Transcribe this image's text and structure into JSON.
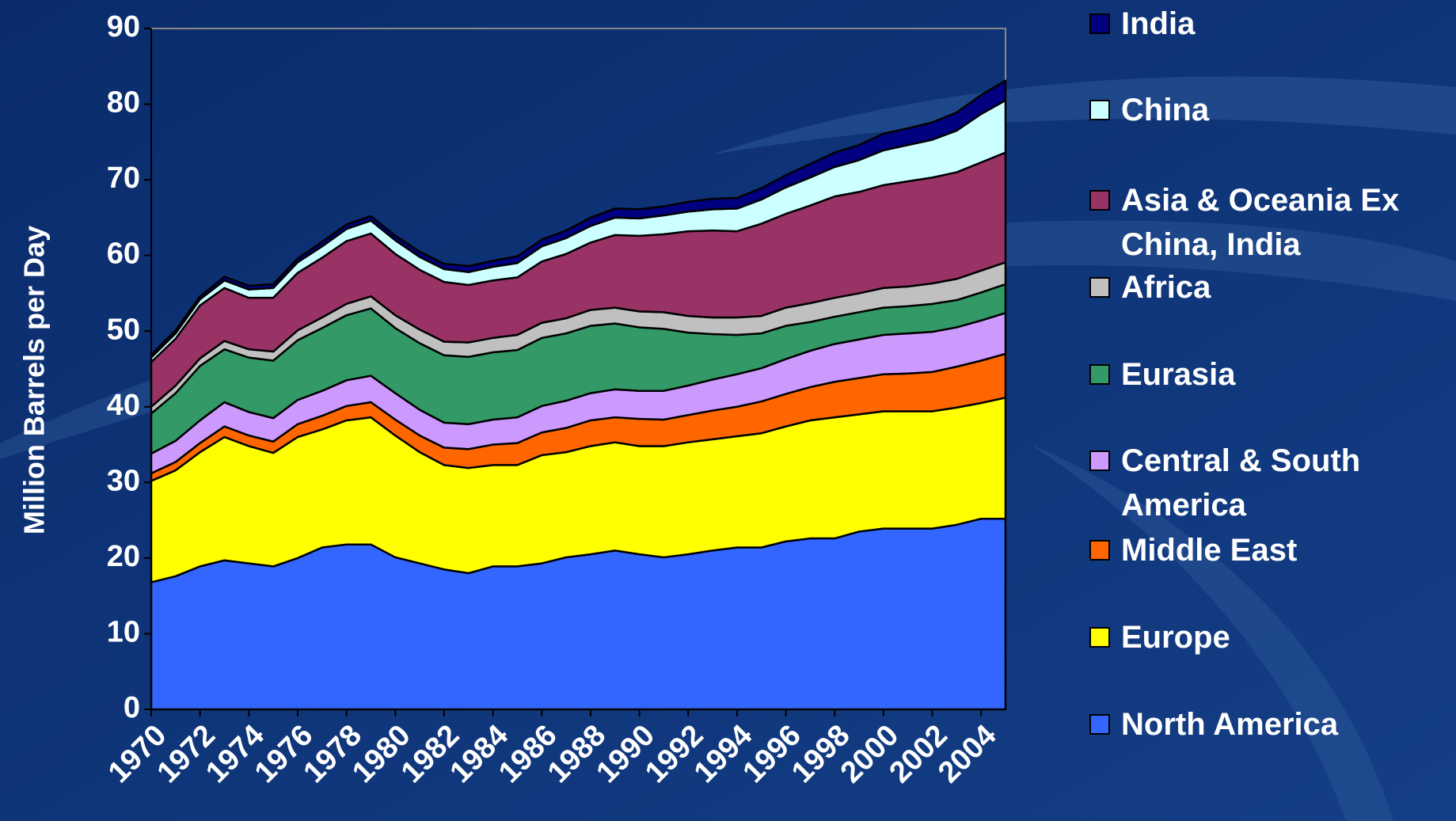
{
  "chart_data": {
    "type": "stacked_area",
    "y_label": "Million Barrels per Day",
    "x": [
      1970,
      1971,
      1972,
      1973,
      1974,
      1975,
      1976,
      1977,
      1978,
      1979,
      1980,
      1981,
      1982,
      1983,
      1984,
      1985,
      1986,
      1987,
      1988,
      1989,
      1990,
      1991,
      1992,
      1993,
      1994,
      1995,
      1996,
      1997,
      1998,
      1999,
      2000,
      2001,
      2002,
      2003,
      2004,
      2005
    ],
    "xlim": [
      1970,
      2005
    ],
    "xticks": [
      1970,
      1972,
      1974,
      1976,
      1978,
      1980,
      1982,
      1984,
      1986,
      1988,
      1990,
      1992,
      1994,
      1996,
      1998,
      2000,
      2002,
      2004
    ],
    "ylim": [
      0,
      90
    ],
    "yticks": [
      0,
      10,
      20,
      30,
      40,
      50,
      60,
      70,
      80,
      90
    ],
    "series": [
      {
        "name": "North America",
        "color": "#3366ff",
        "values": [
          16.8,
          17.6,
          18.9,
          19.7,
          19.3,
          18.9,
          20.0,
          21.4,
          21.8,
          21.8,
          20.1,
          19.3,
          18.5,
          18.0,
          18.9,
          18.9,
          19.3,
          20.1,
          20.5,
          21.0,
          20.5,
          20.1,
          20.5,
          21.0,
          21.4,
          21.4,
          22.2,
          22.6,
          22.6,
          23.5,
          23.9,
          23.9,
          23.9,
          24.4,
          25.2,
          25.2
        ]
      },
      {
        "name": "Europe",
        "color": "#ffff00",
        "values": [
          13.4,
          14,
          15.1,
          16.3,
          15.5,
          15,
          16,
          15.6,
          16.4,
          16.8,
          16.1,
          14.7,
          13.8,
          13.9,
          13.4,
          13.4,
          14.3,
          13.9,
          14.3,
          14.3,
          14.3,
          14.7,
          14.8,
          14.7,
          14.7,
          15.1,
          15.2,
          15.6,
          16,
          15.5,
          15.5,
          15.5,
          15.5,
          15.5,
          15.3,
          16
        ]
      },
      {
        "name": "Middle East",
        "color": "#ff6600",
        "values": [
          1.0,
          1.1,
          1.2,
          1.4,
          1.4,
          1.5,
          1.7,
          1.8,
          1.9,
          2.0,
          2.1,
          2.2,
          2.3,
          2.5,
          2.7,
          2.9,
          3.0,
          3.2,
          3.4,
          3.3,
          3.6,
          3.5,
          3.6,
          3.8,
          3.9,
          4.2,
          4.3,
          4.4,
          4.7,
          4.8,
          4.9,
          5.0,
          5.2,
          5.4,
          5.6,
          5.8
        ]
      },
      {
        "name": "Central & South America",
        "color": "#cc99ff",
        "values": [
          2.6,
          2.8,
          3.0,
          3.2,
          3.1,
          3.1,
          3.2,
          3.3,
          3.4,
          3.5,
          3.5,
          3.4,
          3.3,
          3.3,
          3.3,
          3.4,
          3.5,
          3.6,
          3.6,
          3.7,
          3.7,
          3.8,
          3.9,
          4.1,
          4.3,
          4.4,
          4.6,
          4.8,
          5.0,
          5.1,
          5.2,
          5.3,
          5.3,
          5.2,
          5.3,
          5.4
        ]
      },
      {
        "name": "Eurasia",
        "color": "#339966",
        "values": [
          5.3,
          6.3,
          7.2,
          7.0,
          7.2,
          7.6,
          7.9,
          8.3,
          8.6,
          8.9,
          8.6,
          8.8,
          8.9,
          8.9,
          8.9,
          8.9,
          9.0,
          8.9,
          8.9,
          8.7,
          8.4,
          8.2,
          7.0,
          6.0,
          5.2,
          4.6,
          4.4,
          3.8,
          3.6,
          3.6,
          3.6,
          3.6,
          3.7,
          3.6,
          3.7,
          3.8
        ]
      },
      {
        "name": "Africa",
        "color": "#c0c0c0",
        "values": [
          0.9,
          1.0,
          1.0,
          1.1,
          1.1,
          1.2,
          1.3,
          1.4,
          1.5,
          1.6,
          1.7,
          1.8,
          1.8,
          1.9,
          1.9,
          2.0,
          2.0,
          2.0,
          2.1,
          2.1,
          2.1,
          2.2,
          2.2,
          2.2,
          2.3,
          2.3,
          2.4,
          2.5,
          2.5,
          2.5,
          2.6,
          2.6,
          2.7,
          2.8,
          2.9,
          2.9
        ]
      },
      {
        "name": "Asia & Oceania Ex China, India",
        "color": "#993366",
        "values": [
          5.9,
          6.2,
          7,
          7,
          6.8,
          7.1,
          7.6,
          7.9,
          8.3,
          8.3,
          8.1,
          7.9,
          7.9,
          7.6,
          7.6,
          7.6,
          8.1,
          8.5,
          8.9,
          9.6,
          10,
          10.3,
          11.2,
          11.5,
          11.4,
          12.2,
          12.4,
          12.9,
          13.4,
          13.4,
          13.6,
          13.9,
          14,
          14.1,
          14.3,
          14.5
        ]
      },
      {
        "name": "China",
        "color": "#ccffff",
        "values": [
          0.6,
          0.7,
          0.8,
          1.0,
          1.1,
          1.3,
          1.4,
          1.5,
          1.6,
          1.7,
          1.8,
          1.7,
          1.7,
          1.7,
          1.8,
          1.9,
          2.0,
          2.1,
          2.2,
          2.3,
          2.3,
          2.5,
          2.6,
          2.8,
          3.0,
          3.2,
          3.5,
          3.7,
          3.9,
          4.2,
          4.6,
          4.8,
          5.0,
          5.5,
          6.4,
          6.9
        ]
      },
      {
        "name": "India",
        "color": "#000080",
        "values": [
          0.4,
          0.4,
          0.4,
          0.5,
          0.5,
          0.5,
          0.5,
          0.6,
          0.6,
          0.6,
          0.6,
          0.7,
          0.7,
          0.8,
          0.8,
          0.9,
          0.9,
          1.0,
          1.1,
          1.2,
          1.2,
          1.2,
          1.3,
          1.4,
          1.4,
          1.5,
          1.6,
          1.8,
          1.9,
          2.0,
          2.2,
          2.2,
          2.3,
          2.4,
          2.5,
          2.6
        ]
      }
    ]
  }
}
